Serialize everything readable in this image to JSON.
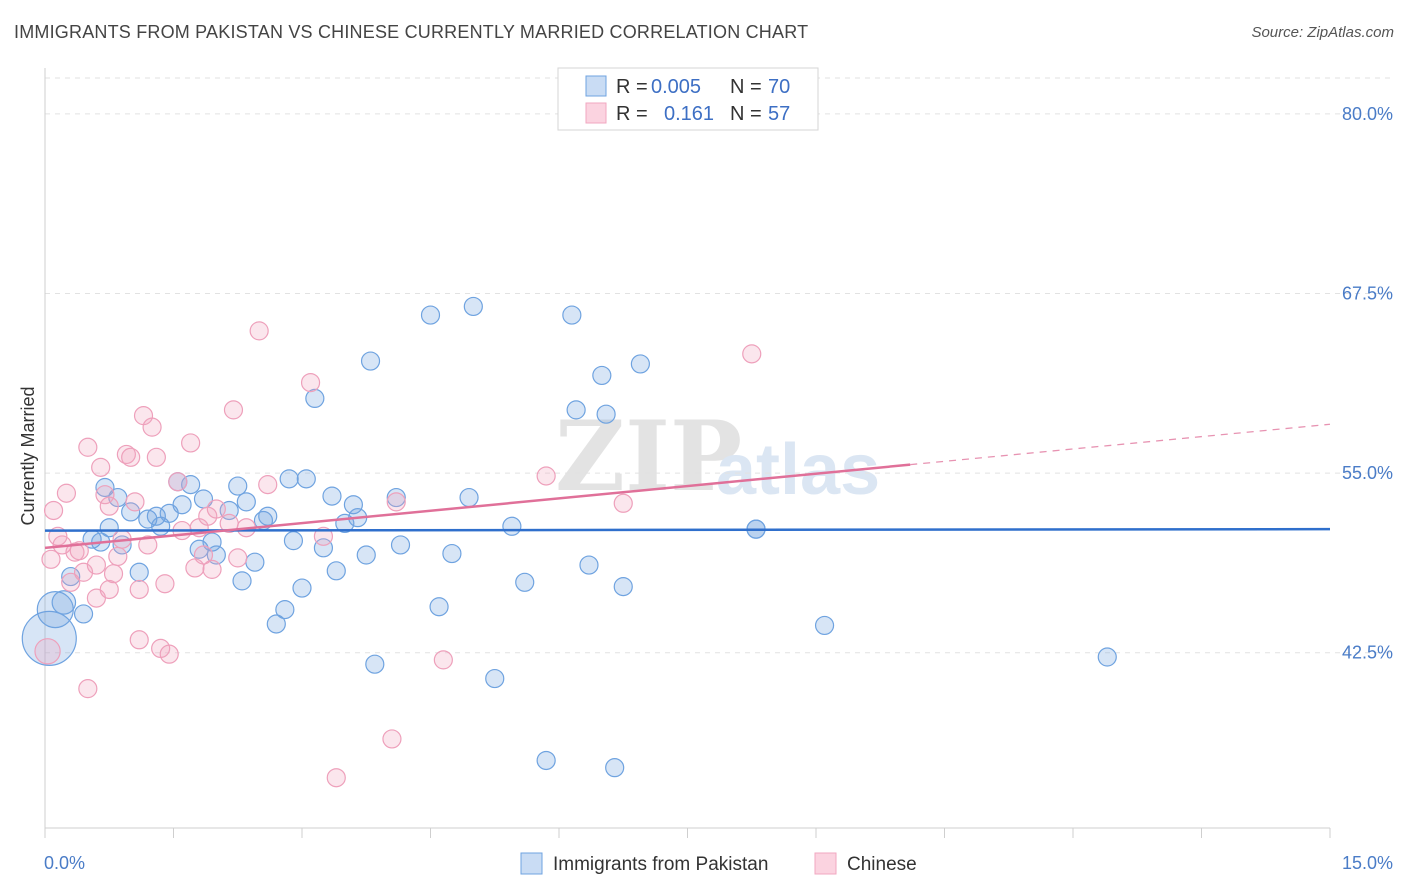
{
  "header": {
    "title": "IMMIGRANTS FROM PAKISTAN VS CHINESE CURRENTLY MARRIED CORRELATION CHART",
    "source": "Source: ZipAtlas.com"
  },
  "watermark": {
    "part1": "ZIP",
    "part2": "atlas"
  },
  "legend_top": {
    "rows": [
      {
        "r_label": "R =",
        "r_value": "0.005",
        "n_label": "N =",
        "n_value": "70",
        "color": "#6fa3e0"
      },
      {
        "r_label": "R =",
        "r_value": "0.161",
        "n_label": "N =",
        "n_value": "57",
        "color": "#f2a7c0"
      }
    ]
  },
  "legend_bottom": [
    {
      "label": "Immigrants from Pakistan",
      "color": "#6fa3e0"
    },
    {
      "label": "Chinese",
      "color": "#f2a7c0"
    }
  ],
  "chart_data": {
    "type": "scatter",
    "ylabel": "Currently Married",
    "xlim": [
      0,
      15
    ],
    "ylim": [
      30.3,
      82.5
    ],
    "x_tick_labels": {
      "min": "0.0%",
      "max": "15.0%"
    },
    "y_ticks": [
      {
        "value": 80.0,
        "label": "80.0%"
      },
      {
        "value": 67.5,
        "label": "67.5%"
      },
      {
        "value": 55.0,
        "label": "55.0%"
      },
      {
        "value": 42.5,
        "label": "42.5%"
      }
    ],
    "grid": true,
    "series": [
      {
        "name": "Immigrants from Pakistan",
        "color": "#6fa3e0",
        "trend": {
          "x": [
            0,
            15
          ],
          "y": [
            51.0,
            51.1
          ],
          "solid_to": 15
        },
        "points": [
          [
            0.05,
            43.5,
            3
          ],
          [
            0.12,
            45.5,
            2
          ],
          [
            0.22,
            46.0,
            1.3
          ],
          [
            0.3,
            47.8,
            1
          ],
          [
            0.45,
            45.2,
            1
          ],
          [
            0.55,
            50.4,
            1
          ],
          [
            0.65,
            50.2,
            1
          ],
          [
            0.75,
            51.2,
            1
          ],
          [
            0.7,
            54.0,
            1
          ],
          [
            0.85,
            53.3,
            1
          ],
          [
            0.9,
            50.0,
            1
          ],
          [
            1.0,
            52.3,
            1
          ],
          [
            1.1,
            48.1,
            1
          ],
          [
            1.2,
            51.8,
            1
          ],
          [
            1.3,
            52.0,
            1
          ],
          [
            1.35,
            51.3,
            1
          ],
          [
            1.45,
            52.2,
            1
          ],
          [
            1.55,
            54.4,
            1
          ],
          [
            1.6,
            52.8,
            1
          ],
          [
            1.7,
            54.2,
            1
          ],
          [
            1.8,
            49.7,
            1
          ],
          [
            1.85,
            53.2,
            1
          ],
          [
            1.95,
            50.2,
            1
          ],
          [
            2.0,
            49.3,
            1
          ],
          [
            2.15,
            52.4,
            1
          ],
          [
            2.25,
            54.1,
            1
          ],
          [
            2.3,
            47.5,
            1
          ],
          [
            2.35,
            53.0,
            1
          ],
          [
            2.45,
            48.8,
            1
          ],
          [
            2.55,
            51.7,
            1
          ],
          [
            2.6,
            52.0,
            1
          ],
          [
            2.7,
            44.5,
            1
          ],
          [
            2.8,
            45.5,
            1
          ],
          [
            2.85,
            54.6,
            1
          ],
          [
            2.9,
            50.3,
            1
          ],
          [
            3.0,
            47.0,
            1
          ],
          [
            3.05,
            54.6,
            1
          ],
          [
            3.15,
            60.2,
            1
          ],
          [
            3.25,
            49.8,
            1
          ],
          [
            3.35,
            53.4,
            1
          ],
          [
            3.4,
            48.2,
            1
          ],
          [
            3.5,
            51.5,
            1
          ],
          [
            3.6,
            52.8,
            1
          ],
          [
            3.65,
            51.9,
            1
          ],
          [
            3.75,
            49.3,
            1
          ],
          [
            3.8,
            62.8,
            1
          ],
          [
            3.85,
            41.7,
            1
          ],
          [
            4.1,
            53.3,
            1
          ],
          [
            4.15,
            50.0,
            1
          ],
          [
            4.5,
            66.0,
            1
          ],
          [
            4.6,
            45.7,
            1
          ],
          [
            4.75,
            49.4,
            1
          ],
          [
            4.95,
            53.3,
            1
          ],
          [
            5.0,
            66.6,
            1
          ],
          [
            5.25,
            40.7,
            1
          ],
          [
            5.45,
            51.3,
            1
          ],
          [
            5.6,
            47.4,
            1
          ],
          [
            5.85,
            35.0,
            1
          ],
          [
            6.15,
            66.0,
            1
          ],
          [
            6.2,
            59.4,
            1
          ],
          [
            6.35,
            48.6,
            1
          ],
          [
            6.5,
            61.8,
            1
          ],
          [
            6.55,
            59.1,
            1
          ],
          [
            6.65,
            34.5,
            1
          ],
          [
            6.75,
            47.1,
            1
          ],
          [
            6.95,
            62.6,
            1
          ],
          [
            8.3,
            51.1,
            1
          ],
          [
            8.3,
            51.1,
            1
          ],
          [
            9.1,
            44.4,
            1
          ],
          [
            12.4,
            42.2,
            1
          ]
        ]
      },
      {
        "name": "Chinese",
        "color": "#f2a7c0",
        "trend": {
          "x": [
            0,
            15
          ],
          "y": [
            49.8,
            58.4
          ],
          "solid_to": 10.1
        },
        "points": [
          [
            0.03,
            42.6,
            1.4
          ],
          [
            0.07,
            49.0,
            1
          ],
          [
            0.1,
            52.4,
            1
          ],
          [
            0.15,
            50.6,
            1
          ],
          [
            0.2,
            50.0,
            1
          ],
          [
            0.25,
            53.6,
            1
          ],
          [
            0.3,
            47.4,
            1
          ],
          [
            0.35,
            49.5,
            1
          ],
          [
            0.4,
            49.6,
            1
          ],
          [
            0.45,
            48.1,
            1
          ],
          [
            0.5,
            56.8,
            1
          ],
          [
            0.5,
            40.0,
            1
          ],
          [
            0.6,
            48.6,
            1
          ],
          [
            0.6,
            46.3,
            1
          ],
          [
            0.65,
            55.4,
            1
          ],
          [
            0.7,
            53.5,
            1
          ],
          [
            0.75,
            52.7,
            1
          ],
          [
            0.75,
            46.9,
            1
          ],
          [
            0.8,
            48.0,
            1
          ],
          [
            0.85,
            49.2,
            1
          ],
          [
            0.9,
            50.4,
            1
          ],
          [
            0.95,
            56.3,
            1
          ],
          [
            1.0,
            56.1,
            1
          ],
          [
            1.05,
            53.0,
            1
          ],
          [
            1.1,
            46.9,
            1
          ],
          [
            1.1,
            43.4,
            1
          ],
          [
            1.15,
            59.0,
            1
          ],
          [
            1.2,
            50.0,
            1
          ],
          [
            1.25,
            58.2,
            1
          ],
          [
            1.3,
            56.1,
            1
          ],
          [
            1.35,
            42.8,
            1
          ],
          [
            1.4,
            47.3,
            1
          ],
          [
            1.45,
            42.4,
            1
          ],
          [
            1.55,
            54.4,
            1
          ],
          [
            1.6,
            51.0,
            1
          ],
          [
            1.7,
            57.1,
            1
          ],
          [
            1.75,
            48.4,
            1
          ],
          [
            1.8,
            51.2,
            1
          ],
          [
            1.85,
            49.3,
            1
          ],
          [
            1.9,
            52.0,
            1
          ],
          [
            1.95,
            48.3,
            1
          ],
          [
            2.0,
            52.5,
            1
          ],
          [
            2.15,
            51.5,
            1
          ],
          [
            2.2,
            59.4,
            1
          ],
          [
            2.25,
            49.1,
            1
          ],
          [
            2.35,
            51.2,
            1
          ],
          [
            2.5,
            64.9,
            1
          ],
          [
            2.6,
            54.2,
            1
          ],
          [
            3.1,
            61.3,
            1
          ],
          [
            3.25,
            50.6,
            1
          ],
          [
            3.4,
            33.8,
            1
          ],
          [
            4.05,
            36.5,
            1
          ],
          [
            4.1,
            53.0,
            1
          ],
          [
            4.65,
            42.0,
            1
          ],
          [
            5.85,
            54.8,
            1
          ],
          [
            6.75,
            52.9,
            1
          ],
          [
            8.25,
            63.3,
            1
          ]
        ]
      }
    ]
  }
}
